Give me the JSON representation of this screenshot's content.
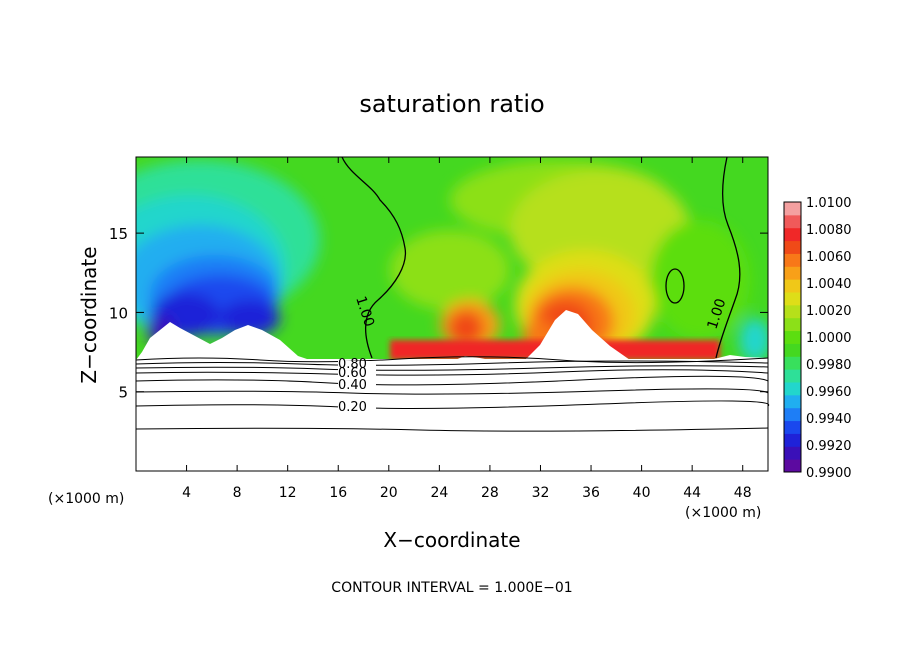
{
  "chart_data": {
    "type": "heatmap",
    "title": "saturation ratio",
    "xlabel": "X−coordinate",
    "ylabel": "Z−coordinate",
    "x_unit_left": "(×1000 m)",
    "x_unit_right": "(×1000 m)",
    "footer": "CONTOUR INTERVAL = 1.000E−01",
    "xlim": [
      0,
      50
    ],
    "ylim": [
      0,
      19.8
    ],
    "xticks": [
      4,
      8,
      12,
      16,
      20,
      24,
      28,
      32,
      36,
      40,
      44,
      48
    ],
    "yticks": [
      5,
      10,
      15
    ],
    "colorbar": {
      "ticks": [
        "1.0100",
        "1.0080",
        "1.0060",
        "1.0040",
        "1.0020",
        "1.0000",
        "0.9980",
        "0.9960",
        "0.9940",
        "0.9920",
        "0.9900"
      ],
      "min": 0.99,
      "max": 1.01,
      "colors": [
        "#5c0aa0",
        "#3a10b8",
        "#1f22d8",
        "#1a48ee",
        "#1e7ef6",
        "#20aef0",
        "#22d6cc",
        "#2ee098",
        "#38e05c",
        "#44d820",
        "#5cde10",
        "#8ce018",
        "#b6e01a",
        "#dede18",
        "#f0c818",
        "#f8a018",
        "#f87818",
        "#f04a18",
        "#f02828",
        "#f05a5a",
        "#f4a0a0"
      ]
    },
    "contour_labels": [
      "0.80",
      "0.60",
      "0.40",
      "0.20",
      "1.00",
      "1.00"
    ]
  }
}
